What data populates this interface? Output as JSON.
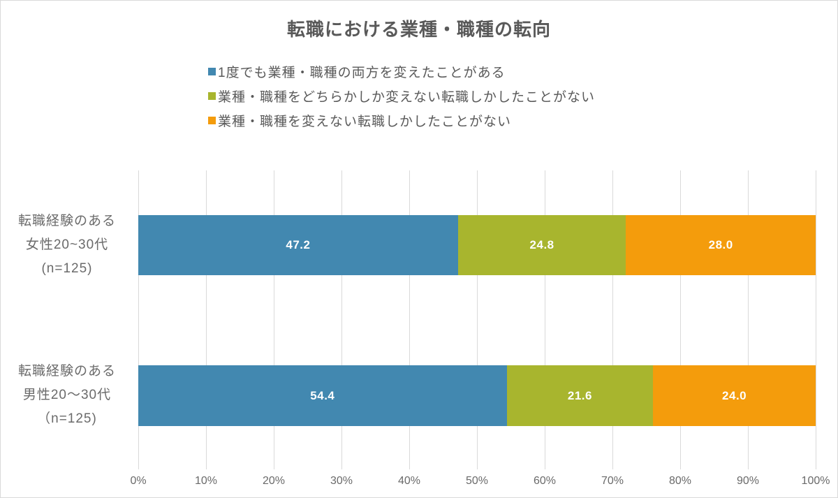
{
  "title": "転職における業種・職種の転向",
  "chart_data": {
    "type": "bar",
    "orientation": "horizontal",
    "stacked": true,
    "unit": "%",
    "xlim": [
      0,
      100
    ],
    "x_ticks": [
      "0%",
      "10%",
      "20%",
      "30%",
      "40%",
      "50%",
      "60%",
      "70%",
      "80%",
      "90%",
      "100%"
    ],
    "grid": "vertical",
    "gridline_color": "#D9D9D9",
    "legend_position": "top",
    "categories": [
      {
        "name": "転職経験のある女性20~30代 (n=125)",
        "lines": [
          "転職経験のある",
          "女性20~30代",
          "(n=125)"
        ]
      },
      {
        "name": "転職経験のある男性20〜30代 （n=125)",
        "lines": [
          "転職経験のある",
          "男性20〜30代",
          "（n=125)"
        ]
      }
    ],
    "series": [
      {
        "name": "1度でも業種・職種の両方を変えたことがある",
        "color": "#4288B0",
        "values": [
          47.2,
          54.4
        ],
        "labels": [
          "47.2",
          "54.4"
        ]
      },
      {
        "name": "業種・職種をどちらかしか変えない転職しかしたことがない",
        "color": "#A8B52E",
        "values": [
          24.8,
          21.6
        ],
        "labels": [
          "24.8",
          "21.6"
        ]
      },
      {
        "name": "業種・職種を変えない転職しかしたことがない",
        "color": "#F49C0C",
        "values": [
          28.0,
          24.0
        ],
        "labels": [
          "28.0",
          "24.0"
        ]
      }
    ]
  }
}
